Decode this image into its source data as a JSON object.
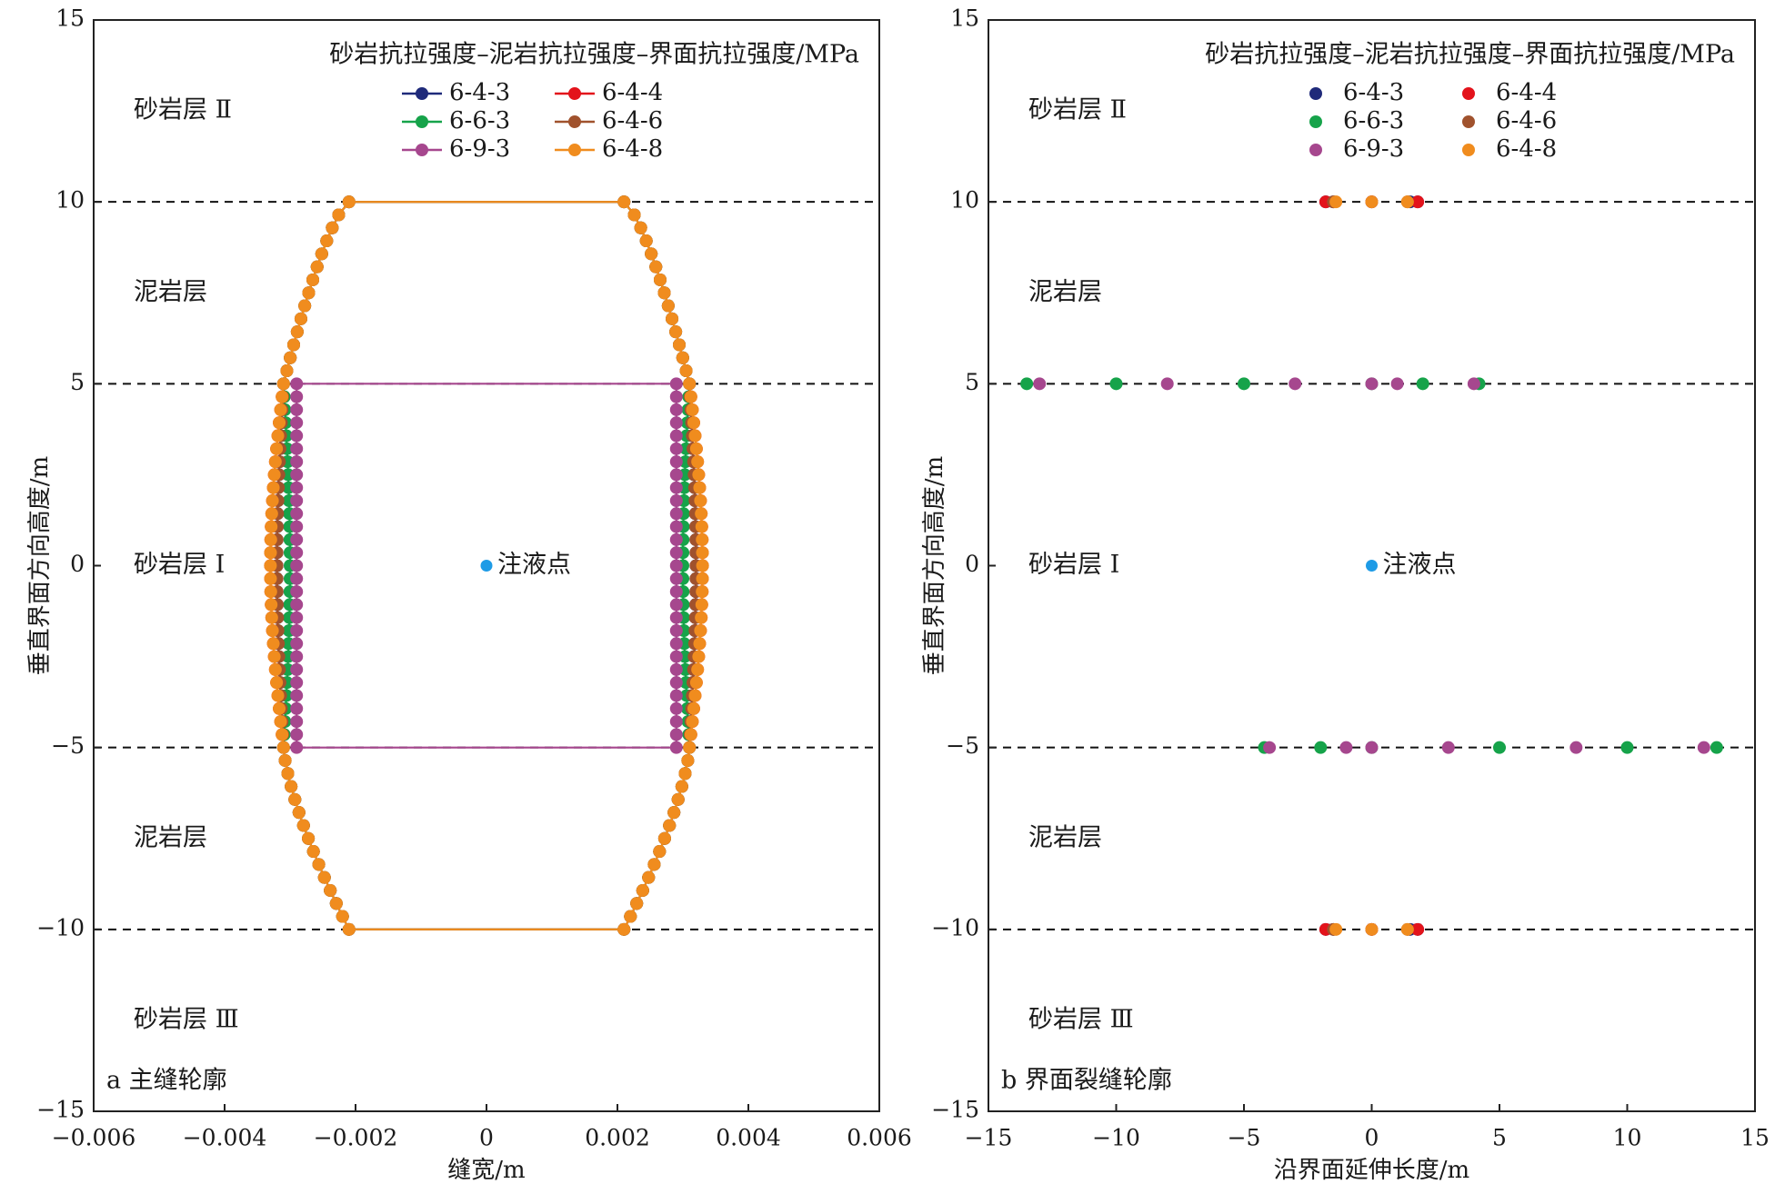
{
  "colors": {
    "6-4-3": "#1f2a7a",
    "6-4-4": "#e3131b",
    "6-6-3": "#16a34a",
    "6-4-6": "#a0522d",
    "6-9-3": "#a6478e",
    "6-4-8": "#f08c1e",
    "injection": "#1e9be6"
  },
  "chart_data": [
    {
      "id": "a",
      "type": "line",
      "panel_label": "a 主缝轮廓",
      "xlabel": "缝宽/m",
      "ylabel": "垂直界面方向高度/m",
      "xlim": [
        -0.006,
        0.006
      ],
      "ylim": [
        -15,
        15
      ],
      "x_ticks": [
        -0.006,
        -0.004,
        -0.002,
        0,
        0.002,
        0.004,
        0.006
      ],
      "x_tick_labels": [
        "−0.006",
        "−0.004",
        "−0.002",
        "0",
        "0.002",
        "0.004",
        "0.006"
      ],
      "y_ticks": [
        -15,
        -10,
        -5,
        0,
        5,
        10,
        15
      ],
      "y_tick_labels": [
        "−15",
        "−10",
        "−5",
        "0",
        "5",
        "10",
        "15"
      ],
      "dashed_lines_y": [
        10,
        5,
        -5,
        -10
      ],
      "legend_title": "砂岩抗拉强度–泥岩抗拉强度–界面抗拉强度/MPa",
      "legend_position": "top-right",
      "layer_labels": [
        {
          "text": "砂岩层 Ⅱ",
          "y": 12.5
        },
        {
          "text": "泥岩层",
          "y": 7.5
        },
        {
          "text": "砂岩层 Ⅰ",
          "y": 0
        },
        {
          "text": "泥岩层",
          "y": -7.5
        },
        {
          "text": "砂岩层 Ⅲ",
          "y": -12.5
        }
      ],
      "injection_point": {
        "x": 0,
        "y": 0,
        "label": "注液点"
      },
      "series": [
        {
          "name": "6-4-3",
          "max_width": 0.0032,
          "top": 10,
          "bottom": -10
        },
        {
          "name": "6-4-4",
          "max_width": 0.0033,
          "top": 10,
          "bottom": -10
        },
        {
          "name": "6-6-3",
          "max_width": 0.003,
          "top": 10,
          "bottom": -10
        },
        {
          "name": "6-4-6",
          "max_width": 0.0032,
          "top": 10,
          "bottom": -10
        },
        {
          "name": "6-9-3",
          "max_width": 0.0029,
          "top": 5,
          "bottom": -5
        },
        {
          "name": "6-4-8",
          "max_width": 0.0033,
          "top": 10,
          "bottom": -10
        }
      ]
    },
    {
      "id": "b",
      "type": "scatter",
      "panel_label": "b 界面裂缝轮廓",
      "xlabel": "沿界面延伸长度/m",
      "ylabel": "垂直界面方向高度/m",
      "xlim": [
        -15,
        15
      ],
      "ylim": [
        -15,
        15
      ],
      "x_ticks": [
        -15,
        -10,
        -5,
        0,
        5,
        10,
        15
      ],
      "x_tick_labels": [
        "−15",
        "−10",
        "−5",
        "0",
        "5",
        "10",
        "15"
      ],
      "y_ticks": [
        -15,
        -10,
        -5,
        0,
        5,
        10,
        15
      ],
      "y_tick_labels": [
        "−15",
        "−10",
        "−5",
        "0",
        "5",
        "10",
        "15"
      ],
      "dashed_lines_y": [
        10,
        5,
        -5,
        -10
      ],
      "legend_title": "砂岩抗拉强度–泥岩抗拉强度–界面抗拉强度/MPa",
      "legend_position": "top-right",
      "layer_labels": [
        {
          "text": "砂岩层 Ⅱ",
          "y": 12.5
        },
        {
          "text": "泥岩层",
          "y": 7.5
        },
        {
          "text": "砂岩层 Ⅰ",
          "y": 0
        },
        {
          "text": "泥岩层",
          "y": -7.5
        },
        {
          "text": "砂岩层 Ⅲ",
          "y": -12.5
        }
      ],
      "injection_point": {
        "x": 0,
        "y": 0,
        "label": "注液点"
      },
      "series": [
        {
          "name": "6-4-3",
          "points": [
            [
              -1.8,
              10
            ],
            [
              -1.5,
              10
            ],
            [
              0,
              10
            ],
            [
              1.5,
              10
            ],
            [
              1.8,
              10
            ],
            [
              -1.8,
              -10
            ],
            [
              -1.5,
              -10
            ],
            [
              0,
              -10
            ],
            [
              1.5,
              -10
            ],
            [
              1.8,
              -10
            ]
          ]
        },
        {
          "name": "6-4-4",
          "points": [
            [
              -1.8,
              10
            ],
            [
              0,
              10
            ],
            [
              1.8,
              10
            ],
            [
              -1.8,
              -10
            ],
            [
              0,
              -10
            ],
            [
              1.8,
              -10
            ]
          ]
        },
        {
          "name": "6-6-3",
          "points": [
            [
              -13.5,
              5
            ],
            [
              -10,
              5
            ],
            [
              -5,
              5
            ],
            [
              0,
              5
            ],
            [
              2,
              5
            ],
            [
              4.2,
              5
            ],
            [
              -4.2,
              -5
            ],
            [
              -2,
              -5
            ],
            [
              0,
              -5
            ],
            [
              5,
              -5
            ],
            [
              10,
              -5
            ],
            [
              13.5,
              -5
            ]
          ]
        },
        {
          "name": "6-4-6",
          "points": [
            [
              -1.5,
              10
            ],
            [
              1.4,
              10
            ],
            [
              -1.5,
              -10
            ],
            [
              1.4,
              -10
            ]
          ]
        },
        {
          "name": "6-9-3",
          "points": [
            [
              -13,
              5
            ],
            [
              -8,
              5
            ],
            [
              -3,
              5
            ],
            [
              0,
              5
            ],
            [
              1,
              5
            ],
            [
              4,
              5
            ],
            [
              -4,
              -5
            ],
            [
              -1,
              -5
            ],
            [
              0,
              -5
            ],
            [
              3,
              -5
            ],
            [
              8,
              -5
            ],
            [
              13,
              -5
            ]
          ]
        },
        {
          "name": "6-4-8",
          "points": [
            [
              -1.4,
              10
            ],
            [
              0,
              10
            ],
            [
              1.4,
              10
            ],
            [
              -1.4,
              -10
            ],
            [
              0,
              -10
            ],
            [
              1.4,
              -10
            ]
          ]
        }
      ]
    }
  ]
}
